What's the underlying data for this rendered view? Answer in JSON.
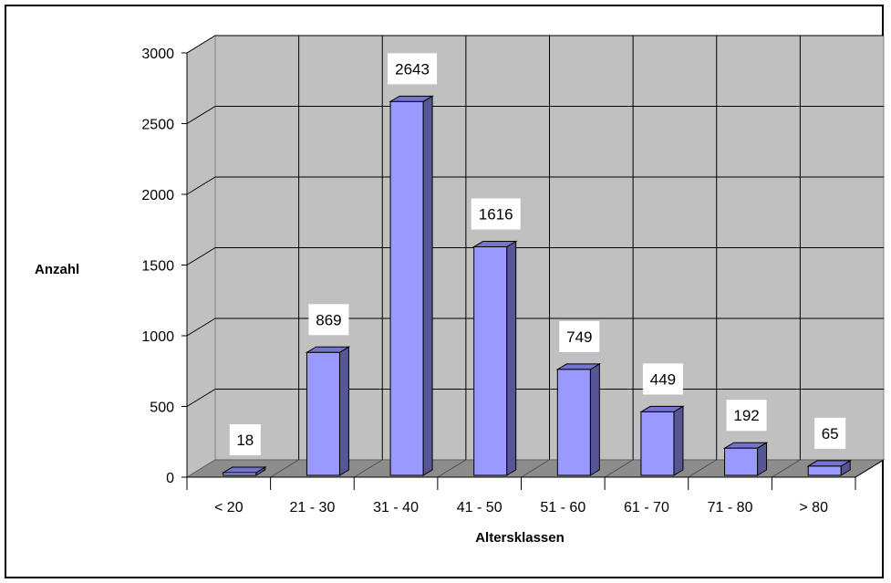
{
  "chart_data": {
    "type": "bar",
    "categories": [
      "< 20",
      "21 - 30",
      "31 - 40",
      "41 - 50",
      "51 - 60",
      "61 - 70",
      "71 - 80",
      "> 80"
    ],
    "values": [
      18,
      869,
      2643,
      1616,
      749,
      449,
      192,
      65
    ],
    "data_labels": [
      "18",
      "869",
      "2643",
      "1616",
      "749",
      "449",
      "192",
      "65"
    ],
    "ylabel": "Anzahl",
    "xlabel": "Altersklassen",
    "ylim": [
      0,
      3000
    ],
    "yticks": [
      "0",
      "500",
      "1000",
      "1500",
      "2000",
      "2500",
      "3000"
    ],
    "grid": true,
    "style": "3d-column",
    "colors": {
      "bar_front": "#9999FF",
      "bar_side": "#565695",
      "bar_top": "#7474CC",
      "wall": "#C0C0C0",
      "floor": "#8C8C8C",
      "grid": "#000000"
    }
  }
}
